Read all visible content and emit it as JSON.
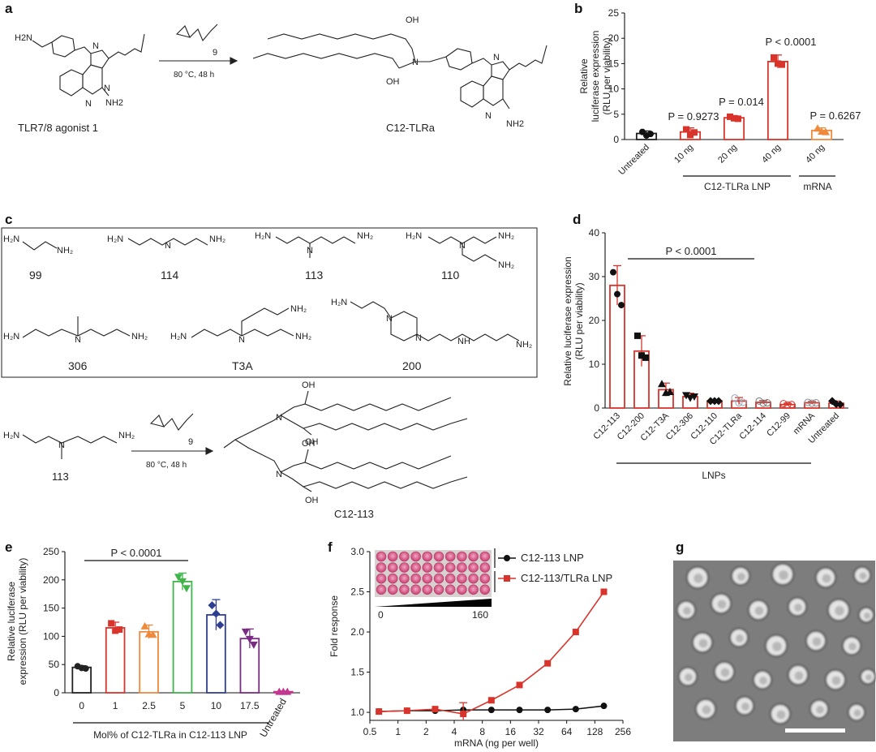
{
  "panels": {
    "a": {
      "letter": "a",
      "reactant_label": "TLR7/8 agonist 1",
      "product_label": "C12-TLRa",
      "conditions": "80 °C, 48 h",
      "subscript": "9",
      "atoms": {
        "oh": "OH",
        "nh2": "NH2",
        "h2n": "H2N",
        "n": "N"
      }
    },
    "b": {
      "letter": "b",
      "ylabel_line1": "Relative",
      "ylabel_line2": "luciferase expression",
      "ylabel_line3": "(RLU per viability)",
      "group1_label": "C12-TLRa LNP",
      "group2_label": "mRNA"
    },
    "c": {
      "letter": "c",
      "amine_labels": [
        "99",
        "114",
        "113",
        "110",
        "306",
        "T3A",
        "200"
      ],
      "reactant_label": "113",
      "product_label": "C12-113",
      "conditions": "80 °C, 48 h",
      "subscript": "9"
    },
    "d": {
      "letter": "d",
      "ylabel_line1": "Relative luciferase expression",
      "ylabel_line2": "(RLU per viability)",
      "group_label": "LNPs"
    },
    "e": {
      "letter": "e",
      "ylabel_line1": "Relative luciferase",
      "ylabel_line2": "expression (RLU per viability)",
      "xlabel": "Mol% of C12-TLRa in C12-113 LNP"
    },
    "f": {
      "letter": "f",
      "ylabel": "Fold response",
      "xlabel": "mRNA (ng per well)",
      "inset_min": "0",
      "inset_max": "160"
    },
    "g": {
      "letter": "g"
    }
  },
  "chart_data": [
    {
      "panel": "b",
      "type": "bar",
      "categories": [
        "Untreated",
        "10 ng",
        "20 ng",
        "40 ng",
        "40 ng"
      ],
      "values": [
        1.2,
        1.5,
        4.3,
        15.4,
        1.8
      ],
      "errors": [
        0.5,
        0.8,
        0.4,
        1.3,
        0.5
      ],
      "points": [
        [
          1.5,
          0.8,
          1.1
        ],
        [
          2.0,
          0.9,
          1.4
        ],
        [
          4.5,
          4.2,
          4.1
        ],
        [
          16.2,
          15.0,
          14.8
        ],
        [
          2.2,
          1.6,
          1.5
        ]
      ],
      "colors": [
        "#222222",
        "#d9342b",
        "#d9342b",
        "#d9342b",
        "#ef8a3c"
      ],
      "ylim": [
        0,
        25
      ],
      "yticks": [
        0,
        5,
        10,
        15,
        20,
        25
      ],
      "annotations": [
        "P = 0.9273",
        "P = 0.014",
        "P < 0.0001",
        "P = 0.6267"
      ]
    },
    {
      "panel": "d",
      "type": "bar",
      "categories": [
        "C12-113",
        "C12-200",
        "C12-T3A",
        "C12-306",
        "C12-110",
        "C12-TLRa",
        "C12-114",
        "C12-99",
        "mRNA",
        "Untreated"
      ],
      "values": [
        28,
        13,
        4.2,
        2.6,
        1.6,
        1.6,
        1.3,
        0.8,
        1.2,
        1.1
      ],
      "errors": [
        4.5,
        3.5,
        1.5,
        0.8,
        0.2,
        0.8,
        0.4,
        0.3,
        0.3,
        0.5
      ],
      "points": [
        [
          31,
          26,
          23.5
        ],
        [
          16.5,
          12,
          11.5
        ],
        [
          5.5,
          3.5,
          3.7
        ],
        [
          2.9,
          2.3,
          2.6
        ],
        [
          1.6,
          1.6,
          1.6
        ],
        [
          2.3,
          1.2,
          1.3
        ],
        [
          1.6,
          1.1,
          1.2
        ],
        [
          1.0,
          0.7,
          0.8
        ],
        [
          1.3,
          1.1,
          1.2
        ],
        [
          1.6,
          0.9,
          0.8
        ]
      ],
      "colors": [
        "#d9342b",
        "#d9342b",
        "#d9342b",
        "#d9342b",
        "#d9342b",
        "#d9342b",
        "#d9342b",
        "#d9342b",
        "#d9342b",
        "#d9342b"
      ],
      "ylim": [
        0,
        40
      ],
      "yticks": [
        0,
        10,
        20,
        30,
        40
      ],
      "annotations": [
        "P < 0.0001"
      ]
    },
    {
      "panel": "e",
      "type": "bar",
      "categories": [
        "0",
        "1",
        "2.5",
        "5",
        "10",
        "17.5",
        "Untreated"
      ],
      "values": [
        45,
        115,
        108,
        197,
        138,
        96,
        2
      ],
      "errors": [
        3,
        10,
        12,
        15,
        27,
        17,
        1
      ],
      "points": [
        [
          47,
          44,
          43
        ],
        [
          123,
          110,
          112
        ],
        [
          118,
          104,
          103
        ],
        [
          205,
          197,
          185
        ],
        [
          155,
          140,
          120
        ],
        [
          108,
          95,
          85
        ],
        [
          2,
          2,
          2
        ]
      ],
      "colors": [
        "#222222",
        "#d9342b",
        "#ef8a3c",
        "#3fb54a",
        "#2f3f8f",
        "#7a2c84",
        "#c2378f"
      ],
      "ylim": [
        0,
        250
      ],
      "yticks": [
        0,
        50,
        100,
        150,
        200,
        250
      ],
      "annotations": [
        "P < 0.0001"
      ]
    },
    {
      "panel": "f",
      "type": "line",
      "x": [
        0.625,
        1.25,
        2.5,
        5,
        10,
        20,
        40,
        80,
        160
      ],
      "xticks": [
        "0.5",
        "1",
        "2",
        "4",
        "8",
        "16",
        "32",
        "64",
        "128",
        "256"
      ],
      "yticks": [
        1.0,
        1.5,
        2.0,
        2.5,
        3.0
      ],
      "ylim": [
        0.9,
        3.0
      ],
      "series": [
        {
          "name": "C12-113 LNP",
          "color": "#111111",
          "values": [
            1.01,
            1.02,
            1.02,
            1.03,
            1.03,
            1.03,
            1.03,
            1.04,
            1.08
          ]
        },
        {
          "name": "C12-113/TLRa LNP",
          "color": "#d9342b",
          "values": [
            1.01,
            1.02,
            1.04,
            0.98,
            1.15,
            1.34,
            1.61,
            2.0,
            2.5
          ]
        }
      ]
    }
  ]
}
